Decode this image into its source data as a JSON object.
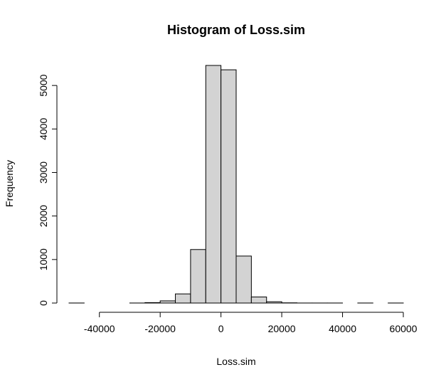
{
  "chart_data": {
    "type": "bar",
    "title": "Histogram of Loss.sim",
    "xlabel": "Loss.sim",
    "ylabel": "Frequency",
    "bin_width": 5000,
    "bin_edges": [
      -50000,
      -45000,
      -40000,
      -35000,
      -30000,
      -25000,
      -20000,
      -15000,
      -10000,
      -5000,
      0,
      5000,
      10000,
      15000,
      20000,
      25000,
      30000,
      35000,
      40000,
      45000,
      50000,
      55000,
      60000
    ],
    "values": [
      1,
      0,
      0,
      0,
      1,
      10,
      50,
      210,
      1230,
      5460,
      5360,
      1080,
      140,
      30,
      5,
      1,
      1,
      1,
      0,
      1,
      0,
      1
    ],
    "xlim": [
      -50000,
      60000
    ],
    "ylim": [
      0,
      5460
    ],
    "x_ticks": [
      -40000,
      -20000,
      0,
      20000,
      40000,
      60000
    ],
    "y_ticks": [
      0,
      1000,
      2000,
      3000,
      4000,
      5000
    ],
    "x_tick_labels": [
      "-40000",
      "-20000",
      "0",
      "20000",
      "40000",
      "60000"
    ],
    "y_tick_labels": [
      "0",
      "1000",
      "2000",
      "3000",
      "4000",
      "5000"
    ],
    "bar_color": "#d3d3d3",
    "grid": false,
    "legend": "none"
  }
}
